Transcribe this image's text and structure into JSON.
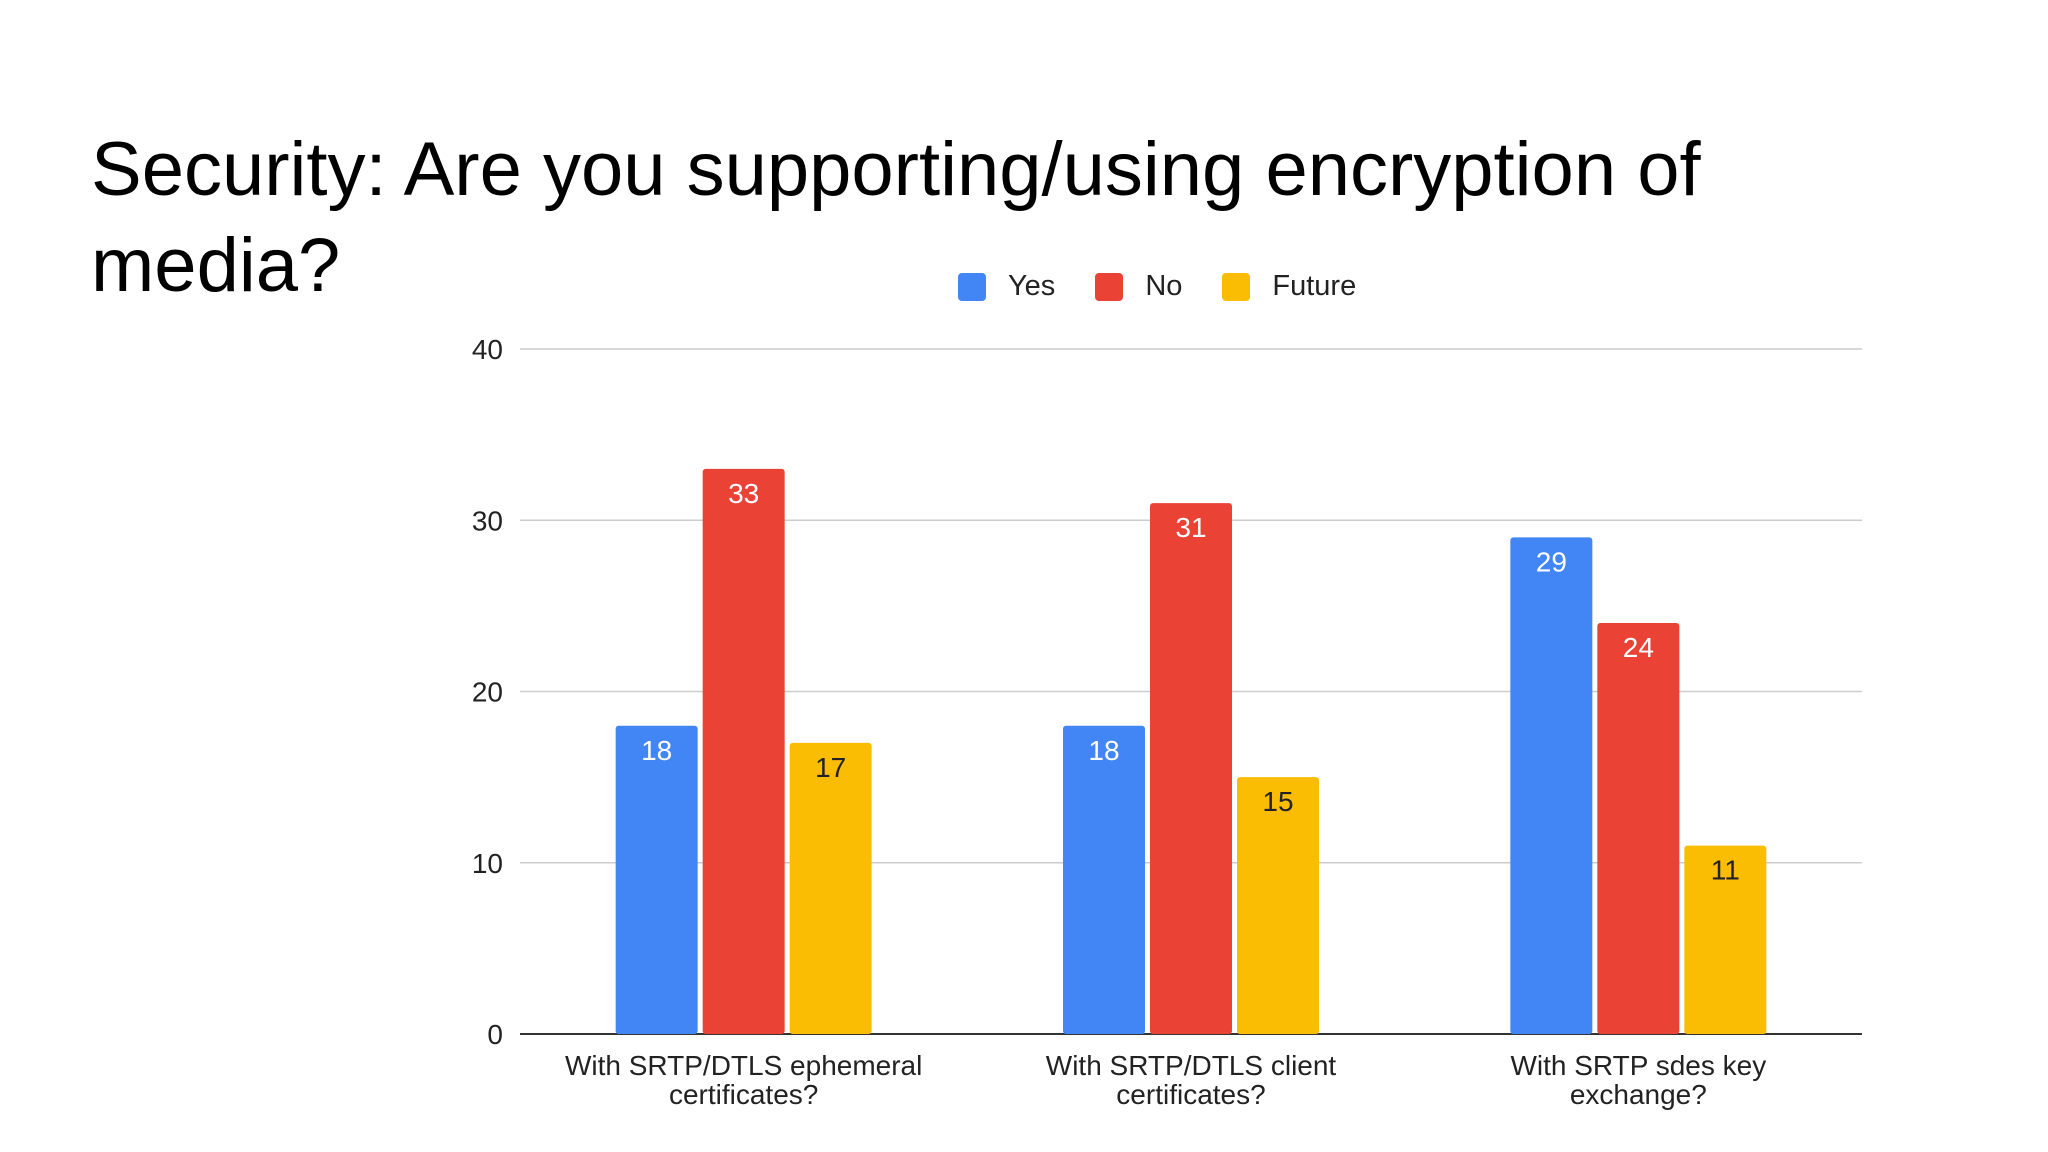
{
  "slide": {
    "title": "Security: Are you supporting/using encryption of media?"
  },
  "chart_data": {
    "type": "bar",
    "title": "",
    "xlabel": "",
    "ylabel": "",
    "categories": [
      [
        "With SRTP/DTLS ephemeral",
        "certificates?"
      ],
      [
        "With SRTP/DTLS client",
        "certificates?"
      ],
      [
        "With SRTP sdes key",
        "exchange?"
      ]
    ],
    "series": [
      {
        "name": "Yes",
        "color": "#4285f4",
        "label_color": "#ffffff",
        "values": [
          18,
          18,
          29
        ]
      },
      {
        "name": "No",
        "color": "#ea4335",
        "label_color": "#ffffff",
        "values": [
          33,
          31,
          24
        ]
      },
      {
        "name": "Future",
        "color": "#fbbc04",
        "label_color": "#222222",
        "values": [
          17,
          15,
          11
        ]
      }
    ],
    "ylim": [
      0,
      40
    ],
    "yticks": [
      0,
      10,
      20,
      30,
      40
    ],
    "grid": true,
    "legend_position": "top-center",
    "data_labels": true
  }
}
